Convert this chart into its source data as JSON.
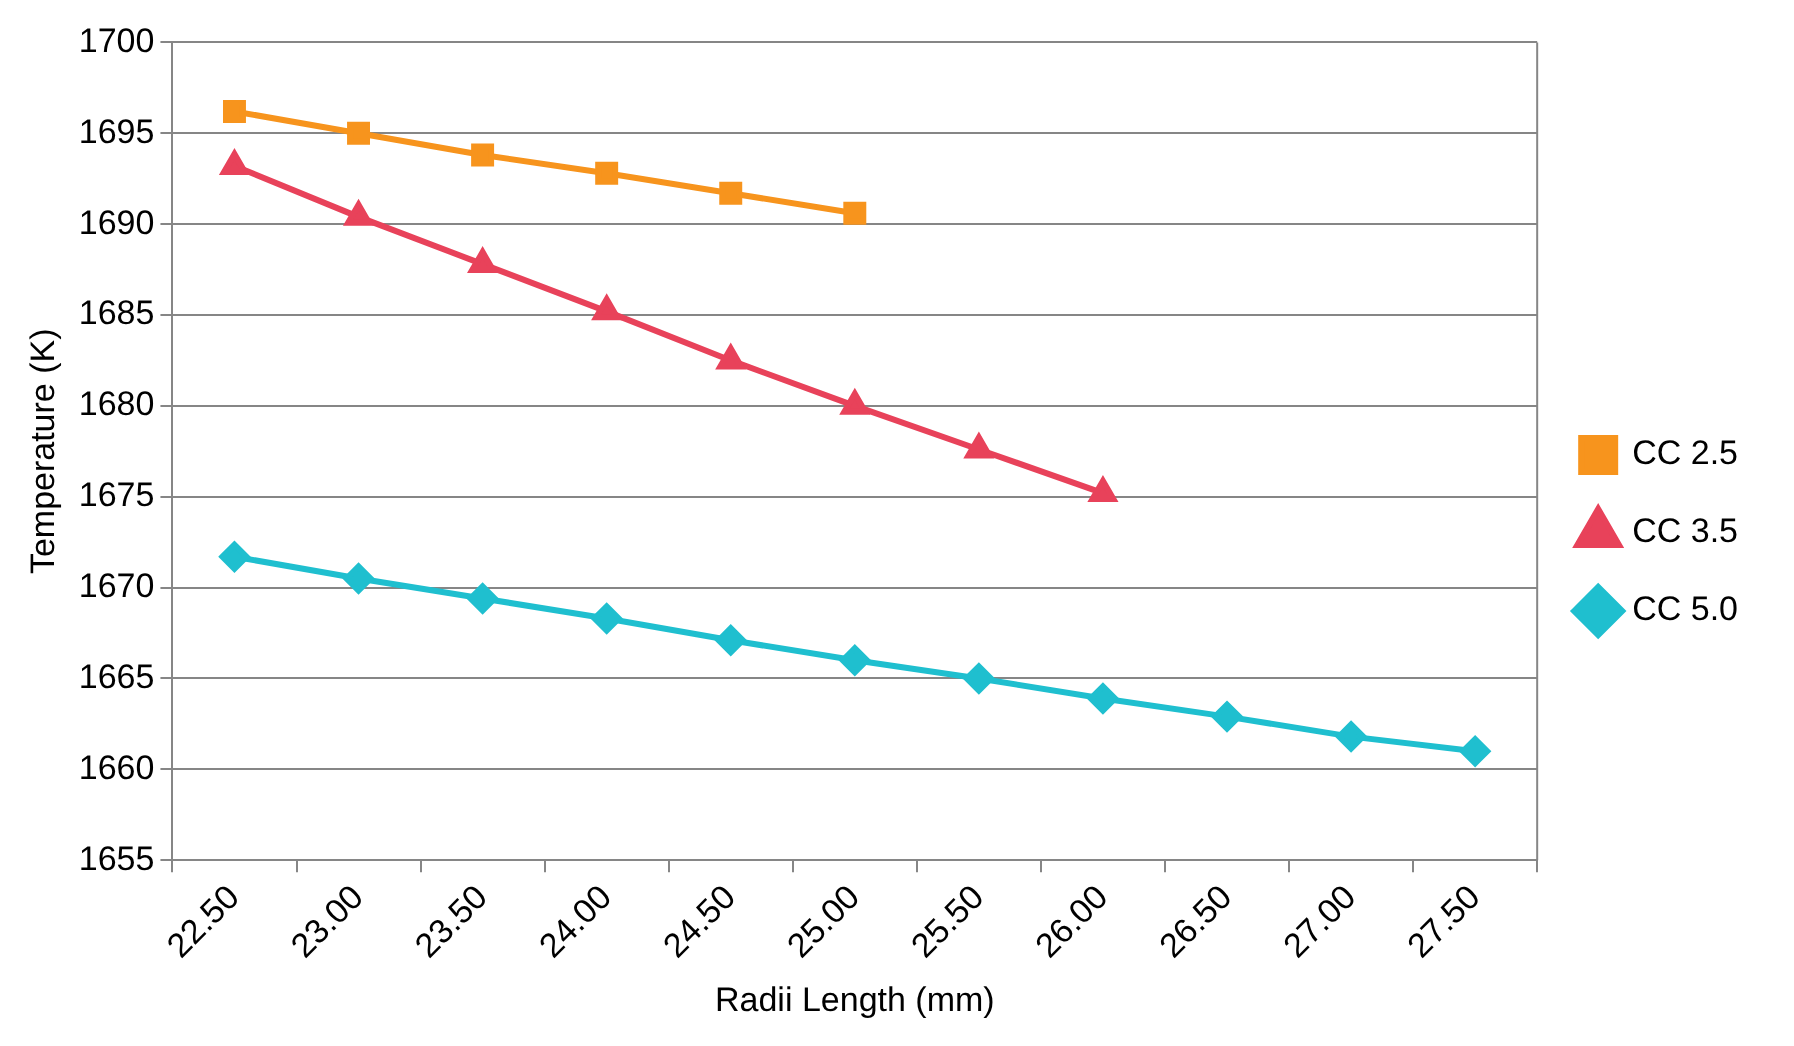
{
  "chart_data": {
    "type": "line",
    "xlabel": "Radii Length (mm)",
    "ylabel": "Temperature (K)",
    "categories": [
      "22.50",
      "23.00",
      "23.50",
      "24.00",
      "24.50",
      "25.00",
      "25.50",
      "26.00",
      "26.50",
      "27.00",
      "27.50"
    ],
    "ylim": [
      1655,
      1700
    ],
    "yticks": [
      1655,
      1660,
      1665,
      1670,
      1675,
      1680,
      1685,
      1690,
      1695,
      1700
    ],
    "grid": "y",
    "legend": "right",
    "series": [
      {
        "name": "CC 2.5",
        "color": "#f7941d",
        "marker": "square",
        "values": [
          1696.2,
          1695.0,
          1693.8,
          1692.8,
          1691.7,
          1690.6,
          null,
          null,
          null,
          null,
          null
        ]
      },
      {
        "name": "CC 3.5",
        "color": "#e8425a",
        "marker": "triangle",
        "values": [
          1693.2,
          1690.4,
          1687.8,
          1685.2,
          1682.5,
          1680.0,
          1677.6,
          1675.2,
          null,
          null,
          null
        ]
      },
      {
        "name": "CC 5.0",
        "color": "#1fbfcf",
        "marker": "diamond",
        "values": [
          1671.7,
          1670.5,
          1669.4,
          1668.3,
          1667.1,
          1666.0,
          1665.0,
          1663.9,
          1662.9,
          1661.8,
          1661.0
        ]
      }
    ]
  }
}
